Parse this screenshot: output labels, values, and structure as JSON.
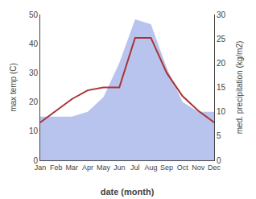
{
  "chart_data": {
    "type": "line",
    "xlabel": "date (month)",
    "ylabel": "max temp (C)",
    "y2label": "med. precipitation (kg/m2)",
    "categories": [
      "Jan",
      "Feb",
      "Mar",
      "Apr",
      "May",
      "Jun",
      "Jul",
      "Aug",
      "Sep",
      "Oct",
      "Nov",
      "Dec"
    ],
    "series": [
      {
        "type": "area",
        "axis": "y2",
        "color": "#b8c4ee",
        "values": [
          9,
          9,
          9,
          10,
          13,
          20,
          29,
          28,
          19,
          12,
          10,
          10
        ]
      },
      {
        "type": "line",
        "color": "#aa3333",
        "values": [
          13,
          17,
          21,
          24,
          25,
          25,
          42,
          42,
          30,
          22,
          17,
          13
        ]
      }
    ],
    "ylim": [
      0,
      50
    ],
    "yticks": [
      0,
      10,
      20,
      30,
      40,
      50
    ],
    "y2lim": [
      0,
      30
    ],
    "y2ticks": [
      0,
      5,
      10,
      15,
      20,
      25,
      30
    ],
    "grid": false
  }
}
